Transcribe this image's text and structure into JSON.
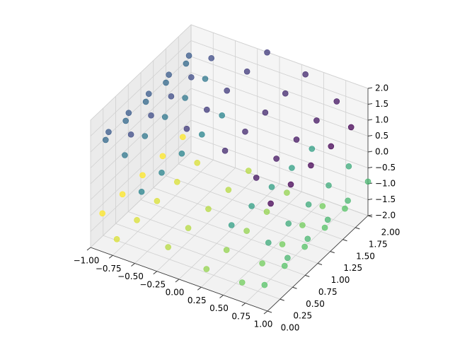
{
  "chart_data": {
    "type": "scatter3d",
    "x": [
      0.98,
      0.98,
      0.98,
      0.98,
      0.98,
      0.76,
      0.76,
      0.76,
      0.76,
      0.76,
      0.35,
      0.35,
      0.35,
      0.35,
      0.35,
      -0.14,
      -0.14,
      -0.14,
      -0.14,
      -0.14,
      -0.6,
      -0.6,
      -0.6,
      -0.6,
      -0.6,
      -0.91,
      -0.91,
      -0.91,
      -0.91,
      -0.91,
      -1,
      -1,
      -1,
      -1,
      -1,
      -0.84,
      -0.84,
      -0.84,
      -0.84,
      -0.84,
      -0.48,
      -0.48,
      -0.48,
      -0.48,
      -0.48,
      0.48,
      0.48,
      0.48,
      0.48,
      0.48,
      0.84,
      0.84,
      0.84,
      0.84,
      0.84,
      1,
      1,
      1,
      1,
      1,
      0.91,
      0.91,
      0.91,
      0.91,
      0.91,
      0.6,
      0.6,
      0.6,
      0.6,
      0.6,
      0.14,
      0.14,
      0.14,
      0.14,
      0.14,
      -0.35,
      -0.35,
      -0.35,
      -0.35,
      -0.35,
      -0.76,
      -0.76,
      -0.76,
      -0.76,
      -0.76,
      -0.98,
      -0.98,
      -0.98,
      -0.98,
      -0.98
    ],
    "y": [
      0.1,
      0.5,
      0.9,
      1.3,
      1.7,
      0.2,
      0.6,
      1.0,
      1.4,
      1.8,
      0.3,
      0.7,
      1.1,
      1.5,
      1.9,
      0.4,
      0.8,
      1.2,
      1.6,
      2.0,
      0.1,
      0.5,
      0.9,
      1.3,
      1.7,
      0.2,
      0.6,
      1.0,
      1.4,
      1.8,
      0.3,
      0.7,
      1.1,
      1.5,
      1.9,
      0.4,
      0.8,
      1.2,
      1.6,
      2.0,
      0.1,
      0.5,
      0.9,
      1.3,
      1.7,
      0.2,
      0.6,
      1.0,
      1.4,
      1.8,
      0.3,
      0.7,
      1.1,
      1.5,
      1.9,
      0.4,
      0.8,
      1.2,
      1.6,
      2.0,
      0.1,
      0.5,
      0.9,
      1.3,
      1.7,
      0.2,
      0.6,
      1.0,
      1.4,
      1.8,
      0.3,
      0.7,
      1.1,
      1.5,
      1.9,
      0.4,
      0.8,
      1.2,
      1.6,
      2.0,
      0.1,
      0.5,
      0.9,
      1.3,
      1.7,
      0.2,
      0.6,
      1.0,
      1.4,
      1.8
    ],
    "z": [
      1.21,
      1.21,
      1.21,
      1.21,
      1.21,
      1.65,
      1.65,
      1.65,
      1.65,
      1.65,
      1.94,
      1.94,
      1.94,
      1.94,
      1.94,
      1.99,
      1.99,
      1.99,
      1.99,
      1.99,
      1.8,
      1.8,
      1.8,
      1.8,
      1.8,
      1.42,
      1.42,
      1.42,
      1.42,
      1.42,
      0.93,
      0.93,
      0.93,
      0.93,
      0.93,
      0.46,
      0.46,
      0.46,
      0.46,
      0.46,
      0.12,
      0.12,
      0.12,
      0.12,
      0.12,
      -0.12,
      -0.12,
      -0.12,
      -0.12,
      -0.12,
      -0.46,
      -0.46,
      -0.46,
      -0.46,
      -0.46,
      -0.93,
      -0.93,
      -0.93,
      -0.93,
      -0.93,
      -1.42,
      -1.42,
      -1.42,
      -1.42,
      -1.42,
      -1.8,
      -1.8,
      -1.8,
      -1.8,
      -1.8,
      -1.99,
      -1.99,
      -1.99,
      -1.99,
      -1.99,
      -1.94,
      -1.94,
      -1.94,
      -1.94,
      -1.94,
      -1.65,
      -1.65,
      -1.65,
      -1.65,
      -1.65,
      -1.21,
      -1.21,
      -1.21,
      -1.21,
      -1.21
    ],
    "c": [
      -4.5,
      -4.5,
      -4.5,
      -4.5,
      -4.5,
      -4,
      -4,
      -4,
      -4,
      -4,
      -3.5,
      -3.5,
      -3.5,
      -3.5,
      -3.5,
      -3,
      -3,
      -3,
      -3,
      -3,
      -2.5,
      -2.5,
      -2.5,
      -2.5,
      -2.5,
      -2,
      -2,
      -2,
      -2,
      -2,
      -1.5,
      -1.5,
      -1.5,
      -1.5,
      -1.5,
      -1,
      -1,
      -1,
      -1,
      -1,
      -0.5,
      -0.5,
      -0.5,
      -0.5,
      -0.5,
      0.5,
      0.5,
      0.5,
      0.5,
      0.5,
      1,
      1,
      1,
      1,
      1,
      1.5,
      1.5,
      1.5,
      1.5,
      1.5,
      2,
      2,
      2,
      2,
      2,
      2.5,
      2.5,
      2.5,
      2.5,
      2.5,
      3,
      3,
      3,
      3,
      3,
      3.5,
      3.5,
      3.5,
      3.5,
      3.5,
      4,
      4,
      4,
      4,
      4,
      4.5,
      4.5,
      4.5,
      4.5,
      4.5
    ],
    "colormap": [
      "#440154",
      "#3b528b",
      "#21918c",
      "#5ec962",
      "#fde725"
    ],
    "xlim": [
      -1,
      1
    ],
    "ylim": [
      0,
      2
    ],
    "zlim": [
      -2,
      2
    ],
    "xticks": [
      {
        "value": -1,
        "label": "−1.00"
      },
      {
        "value": -0.75,
        "label": "−0.75"
      },
      {
        "value": -0.5,
        "label": "−0.50"
      },
      {
        "value": -0.25,
        "label": "−0.25"
      },
      {
        "value": 0,
        "label": "0.00"
      },
      {
        "value": 0.25,
        "label": "0.25"
      },
      {
        "value": 0.5,
        "label": "0.50"
      },
      {
        "value": 0.75,
        "label": "0.75"
      },
      {
        "value": 1,
        "label": "1.00"
      }
    ],
    "yticks": [
      {
        "value": 0,
        "label": "0.00"
      },
      {
        "value": 0.25,
        "label": "0.25"
      },
      {
        "value": 0.5,
        "label": "0.50"
      },
      {
        "value": 0.75,
        "label": "0.75"
      },
      {
        "value": 1,
        "label": "1.00"
      },
      {
        "value": 1.25,
        "label": "1.25"
      },
      {
        "value": 1.5,
        "label": "1.50"
      },
      {
        "value": 1.75,
        "label": "1.75"
      },
      {
        "value": 2,
        "label": "2.00"
      }
    ],
    "zticks": [
      {
        "value": -2,
        "label": "−2.0"
      },
      {
        "value": -1.5,
        "label": "−1.5"
      },
      {
        "value": -1,
        "label": "−1.0"
      },
      {
        "value": -0.5,
        "label": "−0.5"
      },
      {
        "value": 0,
        "label": "0.0"
      },
      {
        "value": 0.5,
        "label": "0.5"
      },
      {
        "value": 1,
        "label": "1.0"
      },
      {
        "value": 1.5,
        "label": "1.5"
      },
      {
        "value": 2,
        "label": "2.0"
      }
    ],
    "grid": true
  }
}
